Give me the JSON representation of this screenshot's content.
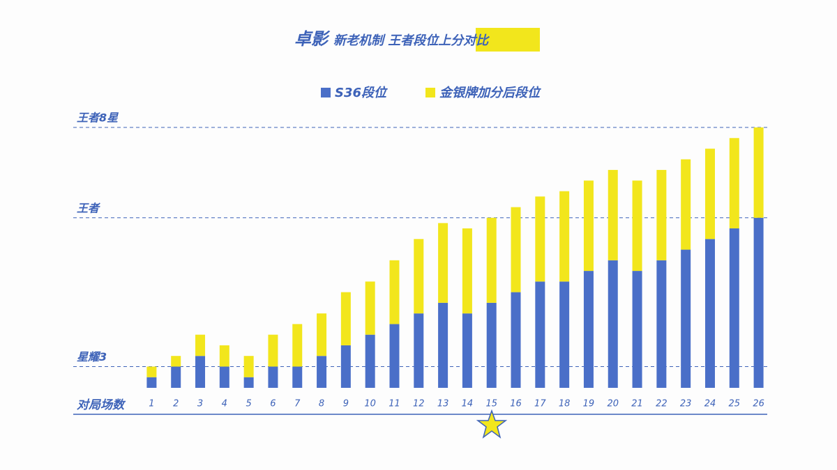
{
  "chart_data": {
    "type": "stacked_bar",
    "title": "卓影",
    "subtitle": "新老机制 王者段位上分对比",
    "xlabel": "对局场数",
    "categories": [
      "1",
      "2",
      "3",
      "4",
      "5",
      "6",
      "7",
      "8",
      "9",
      "10",
      "11",
      "12",
      "13",
      "14",
      "15",
      "16",
      "17",
      "18",
      "19",
      "20",
      "21",
      "22",
      "23",
      "24",
      "25",
      "26"
    ],
    "series": [
      {
        "name": "S36段位",
        "color": "#4a6fc8",
        "values": [
          1,
          2,
          3,
          2,
          1,
          2,
          2,
          3,
          4,
          5,
          6,
          7,
          8,
          7,
          8,
          9,
          10,
          10,
          11,
          12,
          11,
          12,
          13,
          14,
          15,
          16
        ]
      },
      {
        "name": "金银牌加分后段位",
        "color": "#f2e61c",
        "values": [
          1,
          1,
          2,
          2,
          2,
          3,
          4,
          4,
          5,
          5,
          6,
          7,
          7.5,
          8,
          8,
          8,
          8,
          8.5,
          8.5,
          8.5,
          8.5,
          8.5,
          8.5,
          8.5,
          8.5,
          8.5
        ]
      }
    ],
    "ylim": [
      0,
      24.5
    ],
    "yticks": [
      {
        "value": 2,
        "label": "星耀3"
      },
      {
        "value": 16,
        "label": "王者"
      },
      {
        "value": 24.5,
        "label": "王者8星"
      }
    ],
    "grid": true
  }
}
